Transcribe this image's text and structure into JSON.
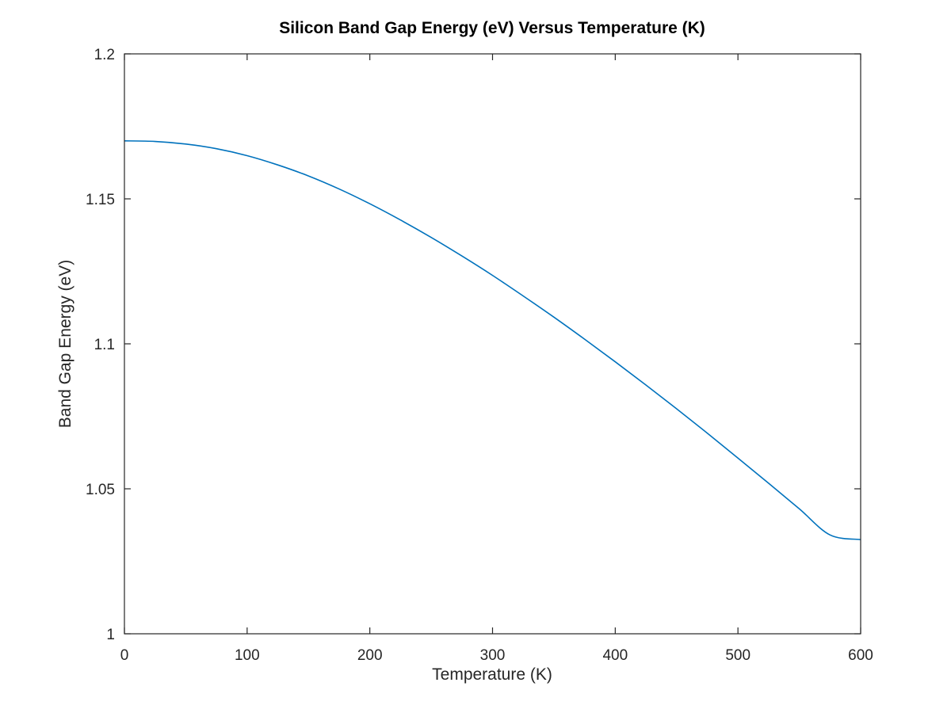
{
  "chart_data": {
    "type": "line",
    "title": "Silicon Band Gap Energy (eV) Versus Temperature (K)",
    "xlabel": "Temperature (K)",
    "ylabel": "Band Gap Energy (eV)",
    "xlim": [
      0,
      600
    ],
    "ylim": [
      1,
      1.2
    ],
    "xticks": [
      0,
      100,
      200,
      300,
      400,
      500,
      600
    ],
    "xtick_labels": [
      "0",
      "100",
      "200",
      "300",
      "400",
      "500",
      "600"
    ],
    "yticks": [
      1,
      1.05,
      1.1,
      1.15,
      1.2
    ],
    "ytick_labels": [
      "1",
      "1.05",
      "1.1",
      "1.15",
      "1.2"
    ],
    "grid": false,
    "legend": "none",
    "series": [
      {
        "color": "#0072bd",
        "x": [
          0,
          25,
          50,
          75,
          100,
          125,
          150,
          175,
          200,
          225,
          250,
          275,
          300,
          325,
          350,
          375,
          400,
          425,
          450,
          475,
          500,
          525,
          550,
          575,
          600
        ],
        "y": [
          1.17,
          1.1698,
          1.1689,
          1.1673,
          1.1649,
          1.1617,
          1.1579,
          1.1534,
          1.1483,
          1.1427,
          1.1367,
          1.1303,
          1.1236,
          1.1165,
          1.1092,
          1.1016,
          1.0938,
          1.0858,
          1.0776,
          1.0692,
          1.0606,
          1.0519,
          1.0431,
          1.0341,
          1.0325
        ]
      }
    ]
  }
}
